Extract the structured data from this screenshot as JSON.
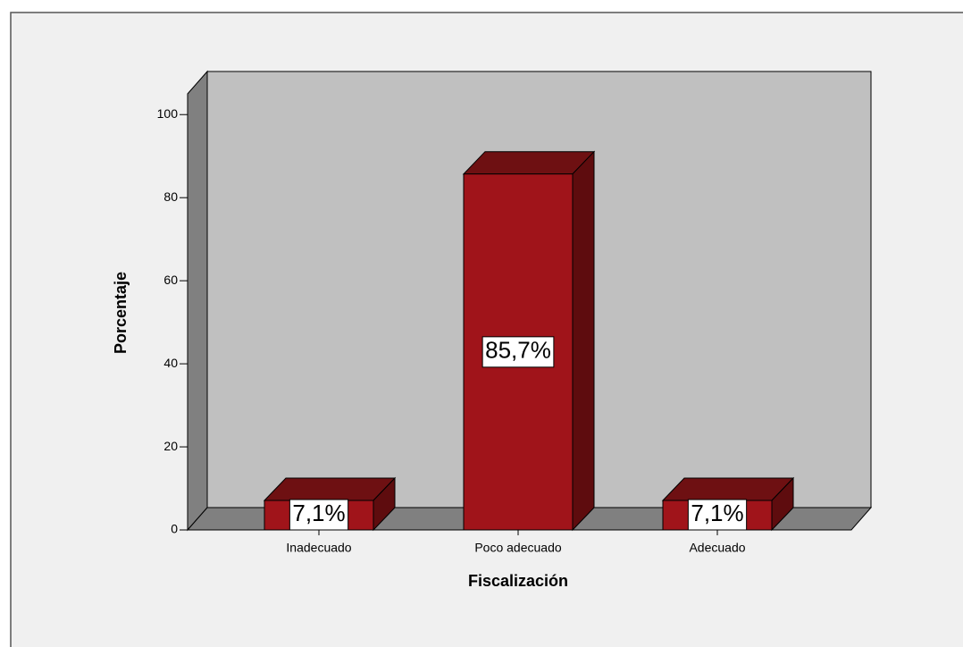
{
  "chart_data": {
    "type": "bar3d",
    "categories": [
      "Inadecuado",
      "Poco adecuado",
      "Adecuado"
    ],
    "values": [
      7.1,
      85.7,
      7.1
    ],
    "value_labels": [
      "7,1%",
      "85,7%",
      "7,1%"
    ],
    "color": "#a0141a",
    "x_label": "Fiscalización",
    "y_label": "Porcentaje",
    "ylim": [
      0,
      105
    ],
    "yticks": [
      0,
      20,
      40,
      60,
      80,
      100
    ]
  }
}
